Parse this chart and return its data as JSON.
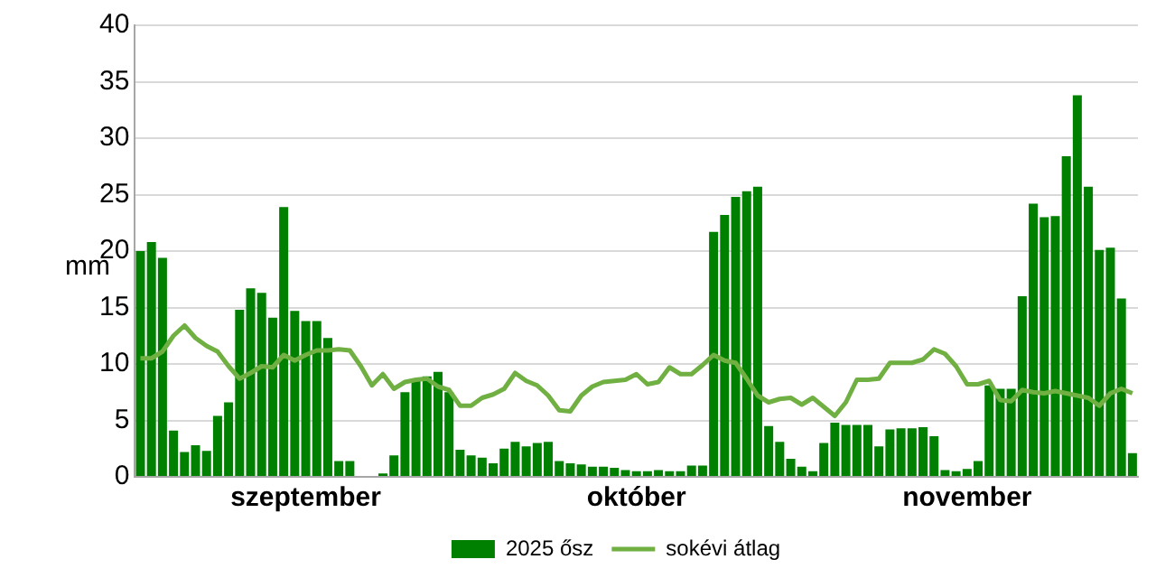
{
  "chart_data": {
    "type": "bar",
    "ylabel": "mm",
    "ylim": [
      0,
      40
    ],
    "yticks": [
      0,
      5,
      10,
      15,
      20,
      25,
      30,
      35,
      40
    ],
    "grid": "y",
    "legend": "bottom",
    "categories": [
      null,
      null,
      null,
      null,
      null,
      null,
      null,
      null,
      null,
      null,
      null,
      null,
      null,
      null,
      null,
      "szeptember",
      null,
      null,
      null,
      null,
      null,
      null,
      null,
      null,
      null,
      null,
      null,
      null,
      null,
      null,
      null,
      null,
      null,
      null,
      null,
      null,
      null,
      null,
      null,
      null,
      null,
      null,
      null,
      null,
      null,
      "október",
      null,
      null,
      null,
      null,
      null,
      null,
      null,
      null,
      null,
      null,
      null,
      null,
      null,
      null,
      null,
      null,
      null,
      null,
      null,
      null,
      null,
      null,
      null,
      null,
      null,
      null,
      null,
      null,
      null,
      "november",
      null,
      null,
      null,
      null,
      null,
      null,
      null,
      null,
      null,
      null,
      null,
      null,
      null,
      null,
      null
    ],
    "series": [
      {
        "name": "2025 ősz",
        "color": "#008000",
        "values": [
          20,
          20.8,
          19.4,
          4.1,
          2.2,
          2.8,
          2.3,
          5.4,
          6.6,
          14.8,
          16.7,
          16.3,
          14.1,
          23.9,
          14.7,
          13.8,
          13.8,
          12.3,
          1.4,
          1.4,
          0,
          0,
          0.3,
          1.9,
          7.5,
          8.5,
          8.9,
          9.3,
          7.5,
          2.4,
          1.9,
          1.7,
          1.2,
          2.5,
          3.1,
          2.7,
          3.0,
          3.1,
          1.4,
          1.2,
          1.1,
          0.9,
          0.9,
          0.8,
          0.6,
          0.5,
          0.5,
          0.6,
          0.5,
          0.5,
          1.0,
          1.0,
          21.7,
          23.2,
          24.8,
          25.3,
          25.7,
          4.5,
          3.1,
          1.6,
          0.9,
          0.5,
          3.0,
          4.8,
          4.6,
          4.6,
          4.6,
          2.7,
          4.2,
          4.3,
          4.3,
          4.4,
          3.6,
          0.6,
          0.5,
          0.7,
          1.4,
          8.1,
          7.8,
          7.8,
          16.0,
          24.2,
          23.0,
          23.1,
          28.4,
          33.8,
          25.7,
          20.1,
          20.3,
          15.8,
          2.1
        ]
      },
      {
        "name": "sokévi átlag",
        "type": "line",
        "color": "#70b043",
        "values": [
          10.5,
          10.5,
          11.1,
          12.5,
          13.4,
          12.3,
          11.6,
          11.1,
          9.8,
          8.7,
          9.2,
          9.8,
          9.7,
          10.8,
          10.3,
          10.8,
          11.2,
          11.2,
          11.3,
          11.2,
          9.8,
          8.1,
          9.1,
          7.8,
          8.4,
          8.6,
          8.7,
          8.0,
          7.7,
          6.3,
          6.3,
          7.0,
          7.3,
          7.8,
          9.2,
          8.5,
          8.1,
          7.2,
          5.9,
          5.8,
          7.2,
          8.0,
          8.4,
          8.5,
          8.6,
          9.1,
          8.2,
          8.4,
          9.7,
          9.1,
          9.1,
          9.9,
          10.8,
          10.3,
          10.1,
          8.7,
          7.2,
          6.6,
          6.9,
          7.0,
          6.4,
          7.0,
          6.2,
          5.4,
          6.6,
          8.6,
          8.6,
          8.7,
          10.1,
          10.1,
          10.1,
          10.4,
          11.3,
          10.9,
          9.8,
          8.2,
          8.2,
          8.5,
          6.8,
          6.7,
          7.7,
          7.5,
          7.4,
          7.6,
          7.4,
          7.2,
          7.0,
          6.3,
          7.4,
          7.8,
          7.4
        ]
      }
    ]
  }
}
